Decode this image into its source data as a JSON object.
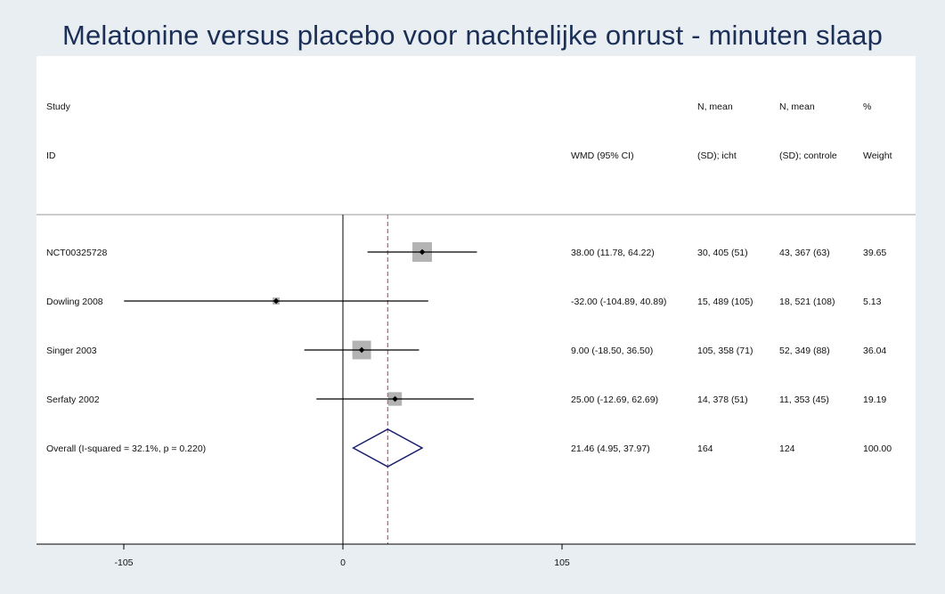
{
  "chart_data": {
    "type": "forest",
    "title": "Melatonine versus placebo voor nachtelijke onrust - minuten slaap",
    "columns": {
      "study": [
        "Study",
        "ID"
      ],
      "effect": "WMD (95% CI)",
      "n1": [
        "N, mean",
        "(SD); icht"
      ],
      "n2": [
        "N, mean",
        "(SD); controle"
      ],
      "weight": [
        "%",
        "Weight"
      ]
    },
    "studies": [
      {
        "id": "NCT00325728",
        "est": 38.0,
        "lo": 11.78,
        "hi": 64.22,
        "ci_text": "38.00 (11.78, 64.22)",
        "n1_text": "30, 405 (51)",
        "n2_text": "43, 367 (63)",
        "weight": 39.65,
        "weight_text": "39.65"
      },
      {
        "id": "Dowling 2008",
        "est": -32.0,
        "lo": -104.89,
        "hi": 40.89,
        "ci_text": "-32.00 (-104.89, 40.89)",
        "n1_text": "15, 489 (105)",
        "n2_text": "18, 521 (108)",
        "weight": 5.13,
        "weight_text": "5.13"
      },
      {
        "id": "Singer 2003",
        "est": 9.0,
        "lo": -18.5,
        "hi": 36.5,
        "ci_text": "9.00 (-18.50, 36.50)",
        "n1_text": "105, 358 (71)",
        "n2_text": "52, 349 (88)",
        "weight": 36.04,
        "weight_text": "36.04"
      },
      {
        "id": "Serfaty 2002",
        "est": 25.0,
        "lo": -12.69,
        "hi": 62.69,
        "ci_text": "25.00 (-12.69, 62.69)",
        "n1_text": "14, 378 (51)",
        "n2_text": "11, 353 (45)",
        "weight": 19.19,
        "weight_text": "19.19"
      }
    ],
    "overall": {
      "label": "Overall  (I-squared = 32.1%, p = 0.220)",
      "est": 21.46,
      "lo": 4.95,
      "hi": 37.97,
      "ci_text": "21.46 (4.95, 37.97)",
      "n1_text": "164",
      "n2_text": "124",
      "weight_text": "100.00"
    },
    "x_ticks": [
      -105,
      0,
      105
    ],
    "x_tick_labels": [
      "-105",
      "0",
      "105"
    ],
    "xlim": [
      -105,
      105
    ],
    "colors": {
      "title": "#1b2f57",
      "background": "#e8eef2",
      "panel": "#ffffff",
      "box": "#b3b3b3",
      "diamond": "#1a1f6e",
      "overall_line": "#c0394a",
      "line": "#000000"
    }
  }
}
